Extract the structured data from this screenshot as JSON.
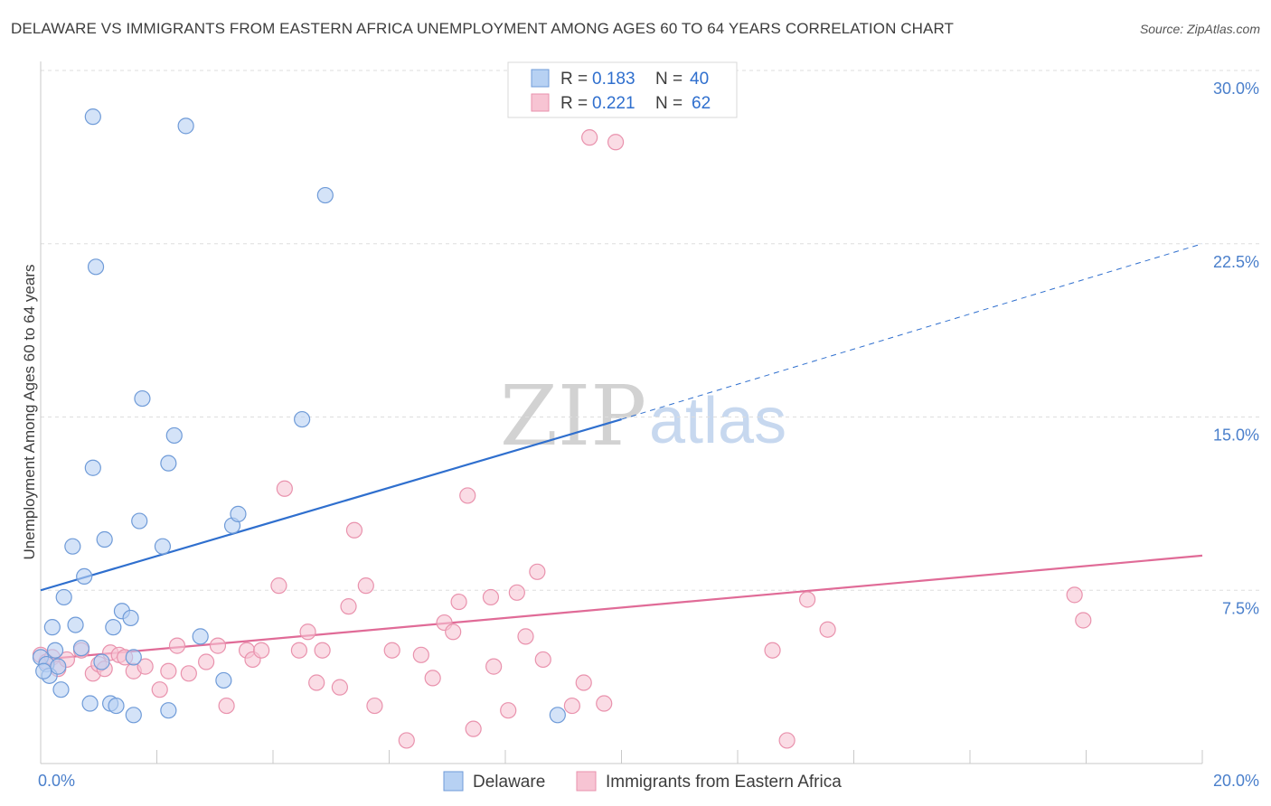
{
  "title": "DELAWARE VS IMMIGRANTS FROM EASTERN AFRICA UNEMPLOYMENT AMONG AGES 60 TO 64 YEARS CORRELATION CHART",
  "source": "Source: ZipAtlas.com",
  "watermark": {
    "zip": "ZIP",
    "atlas": "atlas"
  },
  "colors": {
    "blue_fill": "#b7d1f3",
    "blue_stroke": "#6f9bd8",
    "blue_line": "#2f6fce",
    "pink_fill": "#f7c4d3",
    "pink_stroke": "#e992ad",
    "pink_line": "#e06b97",
    "tick_text": "#4a7fcb",
    "grid": "#dedede"
  },
  "legend": {
    "rows": [
      {
        "r_label": "R = ",
        "r_value": "0.183",
        "n_label": "N = ",
        "n_value": "40"
      },
      {
        "r_label": "R = ",
        "r_value": "0.221",
        "n_label": "N = ",
        "n_value": "62"
      }
    ]
  },
  "chart_data": {
    "type": "scatter",
    "xlabel": "",
    "ylabel": "Unemployment Among Ages 60 to 64 years",
    "xlim": [
      0,
      20
    ],
    "ylim": [
      0,
      30
    ],
    "x_tick_labels": [
      {
        "value": 0,
        "label": "0.0%"
      },
      {
        "value": 20,
        "label": "20.0%"
      }
    ],
    "y_tick_labels": [
      {
        "value": 7.5,
        "label": "7.5%"
      },
      {
        "value": 15,
        "label": "15.0%"
      },
      {
        "value": 22.5,
        "label": "22.5%"
      },
      {
        "value": 30,
        "label": "30.0%"
      }
    ],
    "x_minor_ticks": [
      0,
      2,
      4,
      6,
      8,
      10,
      12,
      14,
      16,
      18,
      20
    ],
    "grid": true,
    "legend_position": "top-center",
    "series": [
      {
        "name": "Delaware",
        "color": "blue",
        "points": [
          [
            0.0,
            4.6
          ],
          [
            0.1,
            4.3
          ],
          [
            0.15,
            3.8
          ],
          [
            0.2,
            5.9
          ],
          [
            0.25,
            4.9
          ],
          [
            0.3,
            4.2
          ],
          [
            0.35,
            3.2
          ],
          [
            0.4,
            7.2
          ],
          [
            0.55,
            9.4
          ],
          [
            0.6,
            6.0
          ],
          [
            0.7,
            5.0
          ],
          [
            0.75,
            8.1
          ],
          [
            0.85,
            2.6
          ],
          [
            0.9,
            12.8
          ],
          [
            0.9,
            28.0
          ],
          [
            0.95,
            21.5
          ],
          [
            1.05,
            4.4
          ],
          [
            1.1,
            9.7
          ],
          [
            1.2,
            2.6
          ],
          [
            1.25,
            5.9
          ],
          [
            1.3,
            2.5
          ],
          [
            1.4,
            6.6
          ],
          [
            1.55,
            6.3
          ],
          [
            1.6,
            4.6
          ],
          [
            1.6,
            2.1
          ],
          [
            1.7,
            10.5
          ],
          [
            1.75,
            15.8
          ],
          [
            2.1,
            9.4
          ],
          [
            2.2,
            13.0
          ],
          [
            2.2,
            2.3
          ],
          [
            2.3,
            14.2
          ],
          [
            2.5,
            27.6
          ],
          [
            2.75,
            5.5
          ],
          [
            3.15,
            3.6
          ],
          [
            3.3,
            10.3
          ],
          [
            3.4,
            10.8
          ],
          [
            4.5,
            14.9
          ],
          [
            4.9,
            24.6
          ],
          [
            8.9,
            2.1
          ],
          [
            0.05,
            4.0
          ]
        ]
      },
      {
        "name": "Immigrants from Eastern Africa",
        "color": "pink",
        "points": [
          [
            0.0,
            4.7
          ],
          [
            0.1,
            4.4
          ],
          [
            0.2,
            4.6
          ],
          [
            0.3,
            4.1
          ],
          [
            0.45,
            4.5
          ],
          [
            0.7,
            4.9
          ],
          [
            0.9,
            3.9
          ],
          [
            1.0,
            4.3
          ],
          [
            1.1,
            4.1
          ],
          [
            1.2,
            4.8
          ],
          [
            1.35,
            4.7
          ],
          [
            1.45,
            4.6
          ],
          [
            1.6,
            4.0
          ],
          [
            1.8,
            4.2
          ],
          [
            2.05,
            3.2
          ],
          [
            2.2,
            4.0
          ],
          [
            2.35,
            5.1
          ],
          [
            2.55,
            3.9
          ],
          [
            2.85,
            4.4
          ],
          [
            3.05,
            5.1
          ],
          [
            3.2,
            2.5
          ],
          [
            3.55,
            4.9
          ],
          [
            3.65,
            4.5
          ],
          [
            3.8,
            4.9
          ],
          [
            4.1,
            7.7
          ],
          [
            4.2,
            11.9
          ],
          [
            4.45,
            4.9
          ],
          [
            4.6,
            5.7
          ],
          [
            4.75,
            3.5
          ],
          [
            4.85,
            4.9
          ],
          [
            5.15,
            3.3
          ],
          [
            5.3,
            6.8
          ],
          [
            5.4,
            10.1
          ],
          [
            5.6,
            7.7
          ],
          [
            5.75,
            2.5
          ],
          [
            6.05,
            4.9
          ],
          [
            6.3,
            1.0
          ],
          [
            6.55,
            4.7
          ],
          [
            6.75,
            3.7
          ],
          [
            6.95,
            6.1
          ],
          [
            7.1,
            5.7
          ],
          [
            7.2,
            7.0
          ],
          [
            7.35,
            11.6
          ],
          [
            7.45,
            1.5
          ],
          [
            7.75,
            7.2
          ],
          [
            7.8,
            4.2
          ],
          [
            8.05,
            2.3
          ],
          [
            8.2,
            7.4
          ],
          [
            8.35,
            5.5
          ],
          [
            8.55,
            8.3
          ],
          [
            8.65,
            4.5
          ],
          [
            9.15,
            2.5
          ],
          [
            9.35,
            3.5
          ],
          [
            9.45,
            27.1
          ],
          [
            9.7,
            2.6
          ],
          [
            9.9,
            26.9
          ],
          [
            12.6,
            4.9
          ],
          [
            12.85,
            1.0
          ],
          [
            13.2,
            7.1
          ],
          [
            13.55,
            5.8
          ],
          [
            17.8,
            7.3
          ],
          [
            17.95,
            6.2
          ]
        ]
      }
    ],
    "trend_lines": [
      {
        "series": "Delaware",
        "solid": [
          [
            0,
            7.5
          ],
          [
            10,
            14.9
          ]
        ],
        "dashed": [
          [
            10,
            14.9
          ],
          [
            20,
            22.5
          ]
        ]
      },
      {
        "series": "Immigrants from Eastern Africa",
        "solid": [
          [
            0,
            4.5
          ],
          [
            20,
            9.0
          ]
        ]
      }
    ]
  },
  "bottom_legend": [
    {
      "label": "Delaware",
      "color": "blue"
    },
    {
      "label": "Immigrants from Eastern Africa",
      "color": "pink"
    }
  ]
}
